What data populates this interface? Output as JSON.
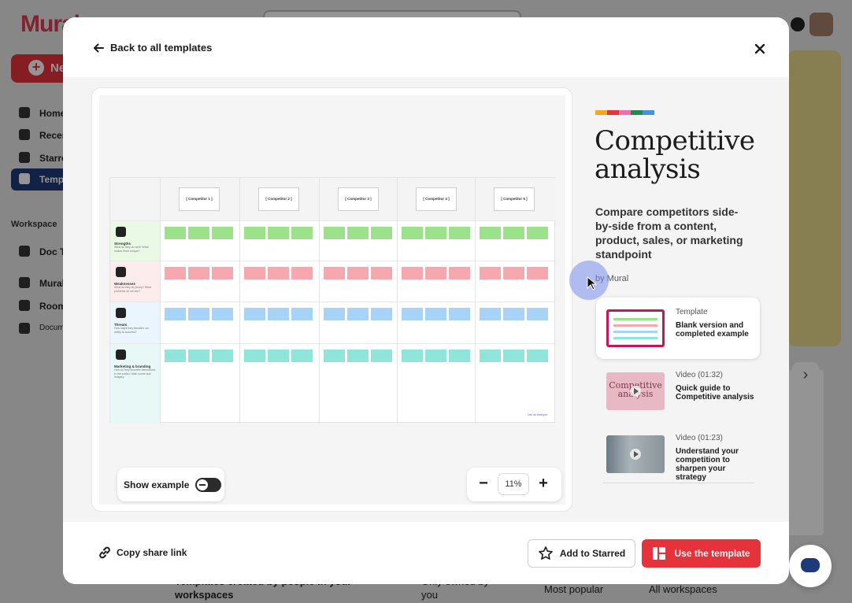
{
  "background": {
    "logo": "Mural",
    "new_label": "Ne",
    "nav": [
      "Home",
      "Recen",
      "Starre",
      "Templ"
    ],
    "workspace_heading": "Workspace",
    "workspace_items": [
      "Doc T",
      "Mural",
      "Room",
      "Docum"
    ],
    "bottom_heading": "Templates created by people in your workspaces",
    "bottom_filter_owned": "Only owned by you",
    "bottom_sort": "Most popular",
    "bottom_workspaces": "All workspaces"
  },
  "header": {
    "back_label": "Back to all templates"
  },
  "preview": {
    "competitors": [
      "[ Competitor 1 ]",
      "[ Competitor 2 ]",
      "[ Competitor 3 ]",
      "[ Competitor 4 ]",
      "[ Competitor 5 ]"
    ],
    "rows": [
      {
        "title": "Strengths",
        "sub": "What do they do well? What makes them unique?",
        "color": "#9be28b",
        "bg": "#eaf8e6"
      },
      {
        "title": "Weaknesses",
        "sub": "What do they do poorly? What problems do we see?",
        "color": "#f7a7ae",
        "bg": "#fdecec"
      },
      {
        "title": "Threats",
        "sub": "How might they threaten our ability to succeed?",
        "color": "#a6d3f7",
        "bg": "#eaf5fd"
      },
      {
        "title": "Marketing & branding",
        "sub": "How do they describe themselves to the public? Main words and imagery",
        "color": "#8fe5d9",
        "bg": "#e7f8f6"
      }
    ],
    "tag": "Use as example",
    "show_example_label": "Show example",
    "zoom_value": "11%"
  },
  "info": {
    "color_bar": [
      "#f5a623",
      "#e5323b",
      "#f06ea9",
      "#1e8a4c",
      "#4a90e2"
    ],
    "title": "Competitive analysis",
    "description": "Compare competitors side-by-side from a content, product, sales, or marketing standpoint",
    "by": "by Mural",
    "resources": [
      {
        "type": "Template",
        "title": "Blank version and completed example"
      },
      {
        "type": "Video (01:32)",
        "title": "Quick guide to Competitive analysis",
        "thumb_text": "Competitive analysis"
      },
      {
        "type": "Video (01:23)",
        "title": "Understand your competition to sharpen your strategy"
      }
    ]
  },
  "footer": {
    "copy_link_label": "Copy share link",
    "starred_label": "Add to Starred",
    "use_label": "Use the template"
  }
}
